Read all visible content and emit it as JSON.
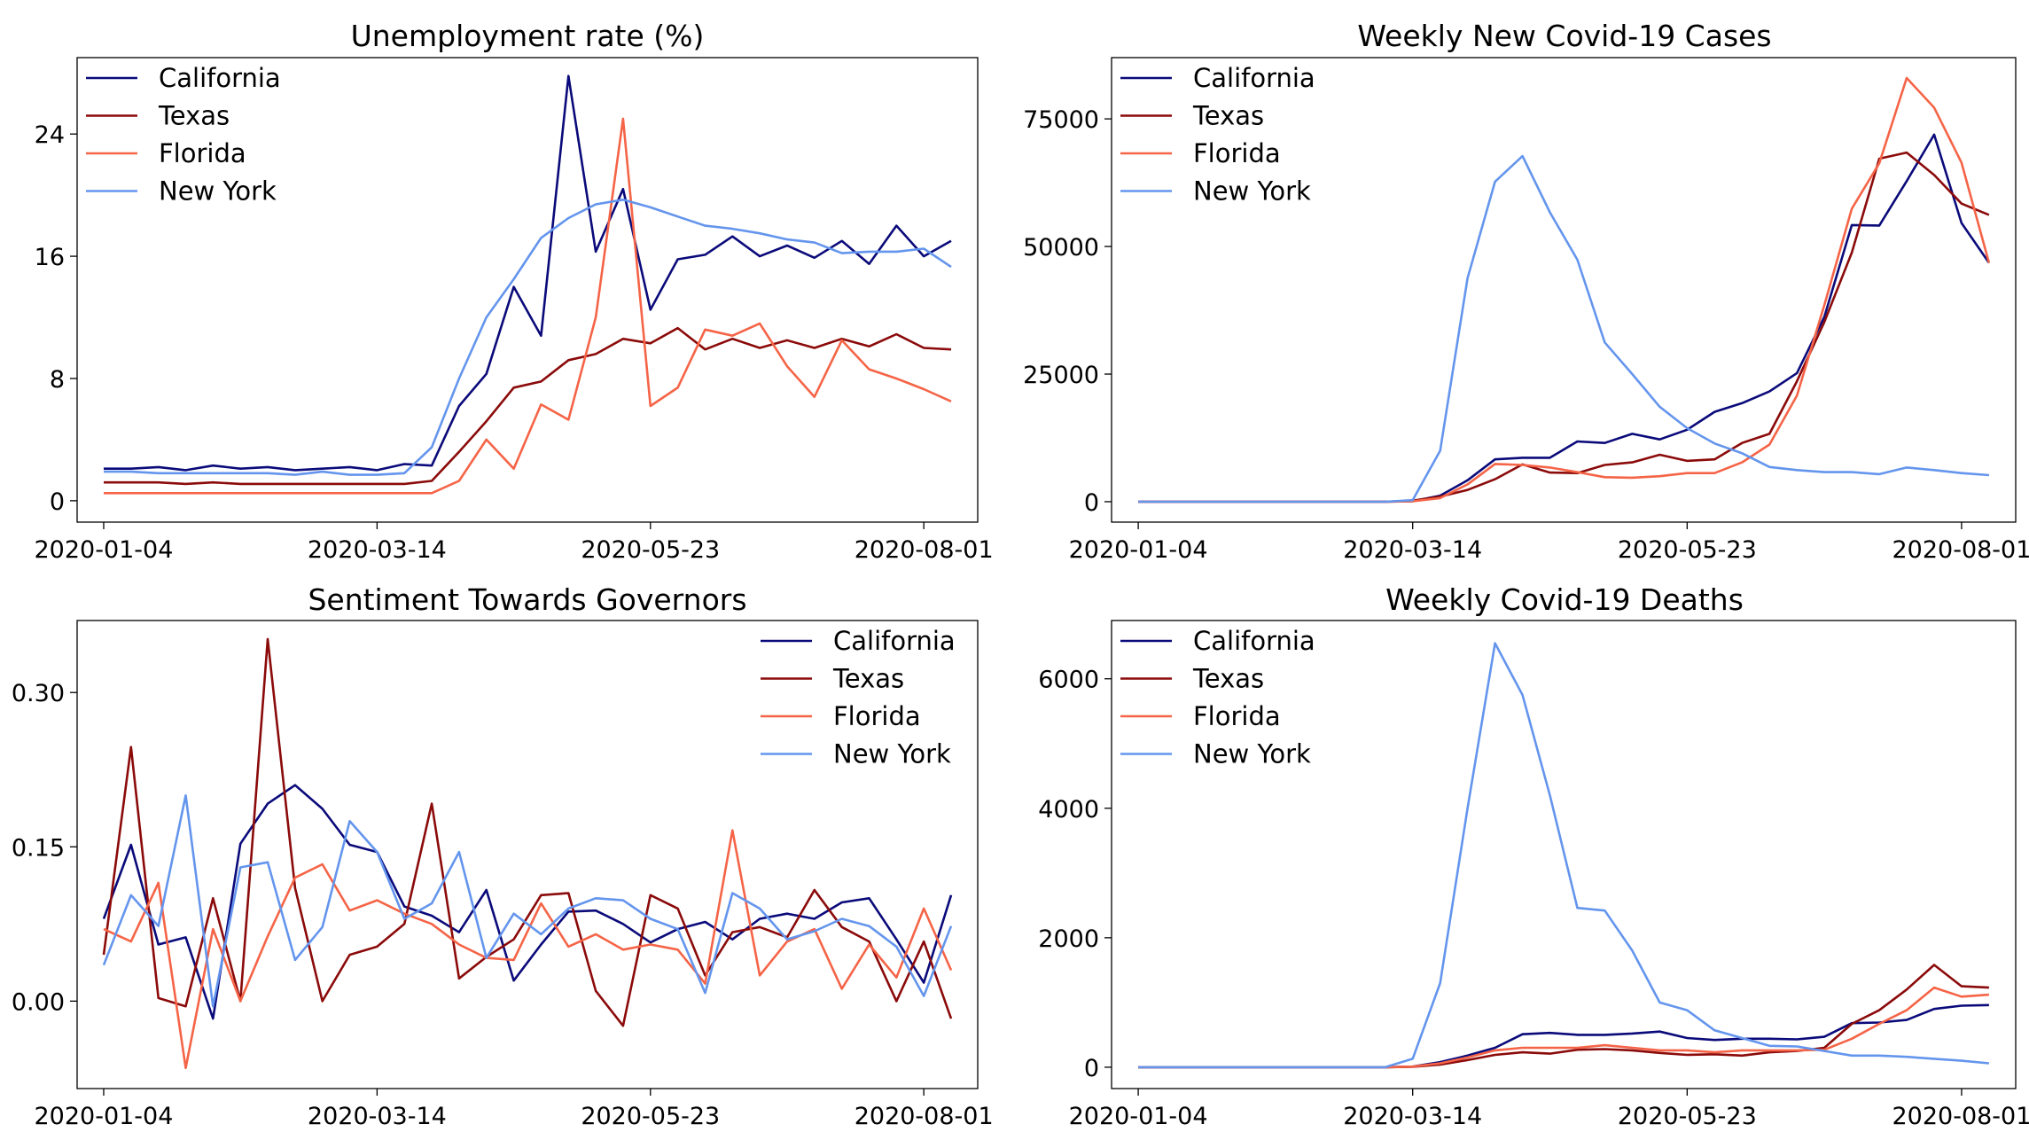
{
  "x_ticks": [
    "2020-01-04",
    "2020-03-14",
    "2020-05-23",
    "2020-08-01"
  ],
  "colors": {
    "California": "#0a0a7a",
    "Texas": "#8b0a0a",
    "Florida": "#f56447",
    "New York": "#6495ed"
  },
  "chart_data": [
    {
      "type": "line",
      "title": "Unemployment rate (%)",
      "xlabel": "",
      "ylabel": "",
      "x_range": [
        0,
        31
      ],
      "ylim": [
        -1.4,
        29
      ],
      "yticks": [
        0,
        8,
        16,
        24
      ],
      "grid": false,
      "legend": "top-left",
      "series": [
        {
          "name": "California",
          "values": [
            2.1,
            2.1,
            2.2,
            2.0,
            2.3,
            2.1,
            2.2,
            2.0,
            2.1,
            2.2,
            2.0,
            2.4,
            2.3,
            6.2,
            8.3,
            14.0,
            10.8,
            27.8,
            16.3,
            20.4,
            12.5,
            15.8,
            16.1,
            17.3,
            16.0,
            16.7,
            15.9,
            17.0,
            15.5,
            18.0,
            16.0,
            17.0
          ]
        },
        {
          "name": "Texas",
          "values": [
            1.2,
            1.2,
            1.2,
            1.1,
            1.2,
            1.1,
            1.1,
            1.1,
            1.1,
            1.1,
            1.1,
            1.1,
            1.3,
            3.2,
            5.2,
            7.4,
            7.8,
            9.2,
            9.6,
            10.6,
            10.3,
            11.3,
            9.9,
            10.6,
            10.0,
            10.5,
            10.0,
            10.6,
            10.1,
            10.9,
            10.0,
            9.9
          ]
        },
        {
          "name": "Florida",
          "values": [
            0.5,
            0.5,
            0.5,
            0.5,
            0.5,
            0.5,
            0.5,
            0.5,
            0.5,
            0.5,
            0.5,
            0.5,
            0.5,
            1.3,
            4.0,
            2.1,
            6.3,
            5.3,
            12.0,
            25.0,
            6.2,
            7.4,
            11.2,
            10.8,
            11.6,
            8.8,
            6.8,
            10.5,
            8.6,
            8.0,
            7.3,
            6.5
          ]
        },
        {
          "name": "New York",
          "values": [
            1.9,
            1.9,
            1.8,
            1.8,
            1.8,
            1.8,
            1.8,
            1.7,
            1.9,
            1.7,
            1.7,
            1.8,
            3.5,
            8.0,
            12.0,
            14.5,
            17.2,
            18.5,
            19.4,
            19.7,
            19.2,
            18.6,
            18.0,
            17.8,
            17.5,
            17.1,
            16.9,
            16.2,
            16.3,
            16.3,
            16.5,
            15.3
          ]
        }
      ]
    },
    {
      "type": "line",
      "title": "Weekly New Covid-19 Cases",
      "xlabel": "",
      "ylabel": "",
      "x_range": [
        0,
        31
      ],
      "ylim": [
        -4000,
        87000
      ],
      "yticks": [
        0,
        25000,
        50000,
        75000
      ],
      "grid": false,
      "legend": "top-left",
      "series": [
        {
          "name": "California",
          "values": [
            0,
            0,
            0,
            0,
            0,
            0,
            0,
            0,
            0,
            0,
            100,
            1200,
            4200,
            8300,
            8600,
            8600,
            11800,
            11500,
            13300,
            12200,
            14100,
            17600,
            19300,
            21600,
            25200,
            36200,
            54200,
            54100,
            62800,
            71900,
            54600,
            46800
          ]
        },
        {
          "name": "Texas",
          "values": [
            0,
            0,
            0,
            0,
            0,
            0,
            0,
            0,
            0,
            0,
            200,
            1000,
            2300,
            4400,
            7300,
            5700,
            5600,
            7200,
            7700,
            9200,
            8000,
            8300,
            11500,
            13300,
            23600,
            35200,
            48800,
            67200,
            68400,
            64000,
            58400,
            56200
          ]
        },
        {
          "name": "Florida",
          "values": [
            0,
            0,
            0,
            0,
            0,
            0,
            0,
            0,
            0,
            0,
            100,
            700,
            3400,
            7400,
            7200,
            6700,
            5800,
            4800,
            4700,
            5000,
            5600,
            5600,
            7700,
            11200,
            20800,
            38500,
            57400,
            66300,
            83000,
            77200,
            66400,
            46800
          ]
        },
        {
          "name": "New York",
          "values": [
            0,
            0,
            0,
            0,
            0,
            0,
            0,
            0,
            0,
            0,
            300,
            10000,
            43800,
            62700,
            67700,
            56700,
            47400,
            31200,
            25000,
            18600,
            14400,
            11400,
            9500,
            6800,
            6200,
            5800,
            5800,
            5400,
            6700,
            6200,
            5600,
            5200
          ]
        }
      ]
    },
    {
      "type": "line",
      "title": "Sentiment Towards Governors",
      "xlabel": "",
      "ylabel": "",
      "x_range": [
        0,
        31
      ],
      "ylim": [
        -0.085,
        0.37
      ],
      "yticks": [
        0.0,
        0.15,
        0.3
      ],
      "ytick_labels": [
        "0.00",
        "0.15",
        "0.30"
      ],
      "grid": false,
      "legend": "top-right",
      "series": [
        {
          "name": "California",
          "values": [
            0.08,
            0.152,
            0.055,
            0.062,
            -0.017,
            0.153,
            0.192,
            0.21,
            0.187,
            0.152,
            0.145,
            0.092,
            0.083,
            0.067,
            0.108,
            0.02,
            0.055,
            0.087,
            0.088,
            0.075,
            0.057,
            0.07,
            0.077,
            0.06,
            0.08,
            0.085,
            0.08,
            0.096,
            0.1,
            0.06,
            0.018,
            0.103
          ]
        },
        {
          "name": "Texas",
          "values": [
            0.045,
            0.247,
            0.003,
            -0.005,
            0.1,
            0.0,
            0.352,
            0.11,
            0.0,
            0.045,
            0.053,
            0.075,
            0.192,
            0.022,
            0.043,
            0.06,
            0.103,
            0.105,
            0.01,
            -0.024,
            0.103,
            0.09,
            0.025,
            0.067,
            0.072,
            0.062,
            0.108,
            0.072,
            0.058,
            0.0,
            0.058,
            -0.017
          ]
        },
        {
          "name": "Florida",
          "values": [
            0.07,
            0.058,
            0.115,
            -0.065,
            0.07,
            0.0,
            0.063,
            0.12,
            0.133,
            0.088,
            0.098,
            0.085,
            0.075,
            0.055,
            0.042,
            0.04,
            0.095,
            0.053,
            0.065,
            0.05,
            0.055,
            0.05,
            0.017,
            0.166,
            0.025,
            0.058,
            0.07,
            0.012,
            0.055,
            0.023,
            0.09,
            0.03
          ]
        },
        {
          "name": "New York",
          "values": [
            0.035,
            0.103,
            0.073,
            0.2,
            -0.005,
            0.13,
            0.135,
            0.04,
            0.072,
            0.175,
            0.145,
            0.08,
            0.095,
            0.145,
            0.042,
            0.085,
            0.065,
            0.09,
            0.1,
            0.098,
            0.08,
            0.07,
            0.008,
            0.105,
            0.09,
            0.06,
            0.068,
            0.08,
            0.073,
            0.053,
            0.005,
            0.073
          ]
        }
      ]
    },
    {
      "type": "line",
      "title": "Weekly Covid-19 Deaths",
      "xlabel": "",
      "ylabel": "",
      "x_range": [
        0,
        31
      ],
      "ylim": [
        -330,
        6900
      ],
      "yticks": [
        0,
        2000,
        4000,
        6000
      ],
      "grid": false,
      "legend": "top-left",
      "series": [
        {
          "name": "California",
          "values": [
            0,
            0,
            0,
            0,
            0,
            0,
            0,
            0,
            0,
            0,
            10,
            80,
            180,
            300,
            510,
            530,
            500,
            500,
            520,
            550,
            450,
            420,
            440,
            440,
            430,
            470,
            680,
            690,
            730,
            900,
            950,
            960
          ]
        },
        {
          "name": "Texas",
          "values": [
            0,
            0,
            0,
            0,
            0,
            0,
            0,
            0,
            0,
            0,
            5,
            40,
            110,
            190,
            230,
            210,
            270,
            280,
            260,
            220,
            190,
            200,
            180,
            230,
            250,
            300,
            670,
            880,
            1200,
            1580,
            1250,
            1230
          ]
        },
        {
          "name": "Florida",
          "values": [
            0,
            0,
            0,
            0,
            0,
            0,
            0,
            0,
            0,
            0,
            10,
            60,
            150,
            260,
            300,
            300,
            300,
            340,
            300,
            260,
            260,
            230,
            260,
            260,
            260,
            270,
            440,
            670,
            880,
            1230,
            1090,
            1120
          ]
        },
        {
          "name": "New York",
          "values": [
            0,
            0,
            0,
            0,
            0,
            0,
            0,
            0,
            0,
            0,
            130,
            1300,
            4000,
            6550,
            5750,
            4200,
            2460,
            2420,
            1800,
            1000,
            880,
            570,
            450,
            330,
            320,
            250,
            180,
            180,
            160,
            130,
            100,
            60
          ]
        }
      ]
    }
  ]
}
